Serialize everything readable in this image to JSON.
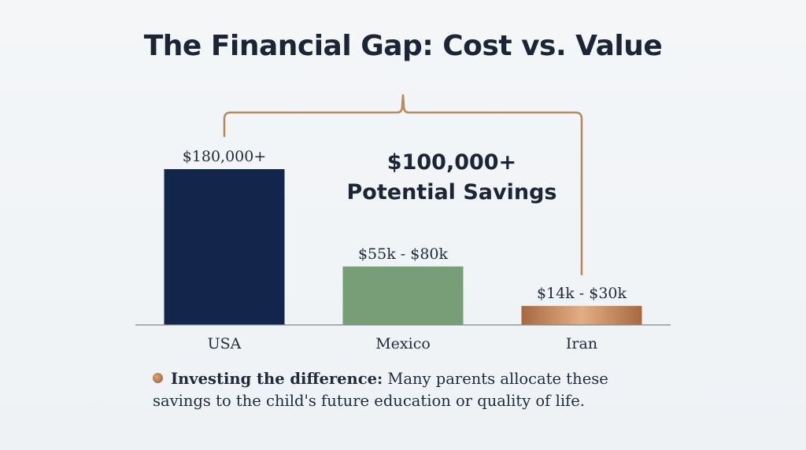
{
  "chart_data": {
    "type": "bar",
    "title": "The Financial Gap: Cost vs. Value",
    "categories": [
      "USA",
      "Mexico",
      "Iran"
    ],
    "values": [
      180000,
      67500,
      22000
    ],
    "value_labels": [
      "$180,000+",
      "$55k - $80k",
      "$14k - $30k"
    ],
    "ranges": [
      [
        180000,
        null
      ],
      [
        55000,
        80000
      ],
      [
        14000,
        30000
      ]
    ],
    "ylim": [
      0,
      200000
    ],
    "colors": [
      "#13254a",
      "#789e78",
      "#c98a5c"
    ],
    "grid": false,
    "annotation": {
      "amount": "$100,000+",
      "label": "Potential Savings",
      "bracket_color": "#b88b5e"
    }
  },
  "footnote": {
    "lead": "Investing the difference:",
    "text": " Many parents allocate these savings to the child's future education or quality of life."
  }
}
